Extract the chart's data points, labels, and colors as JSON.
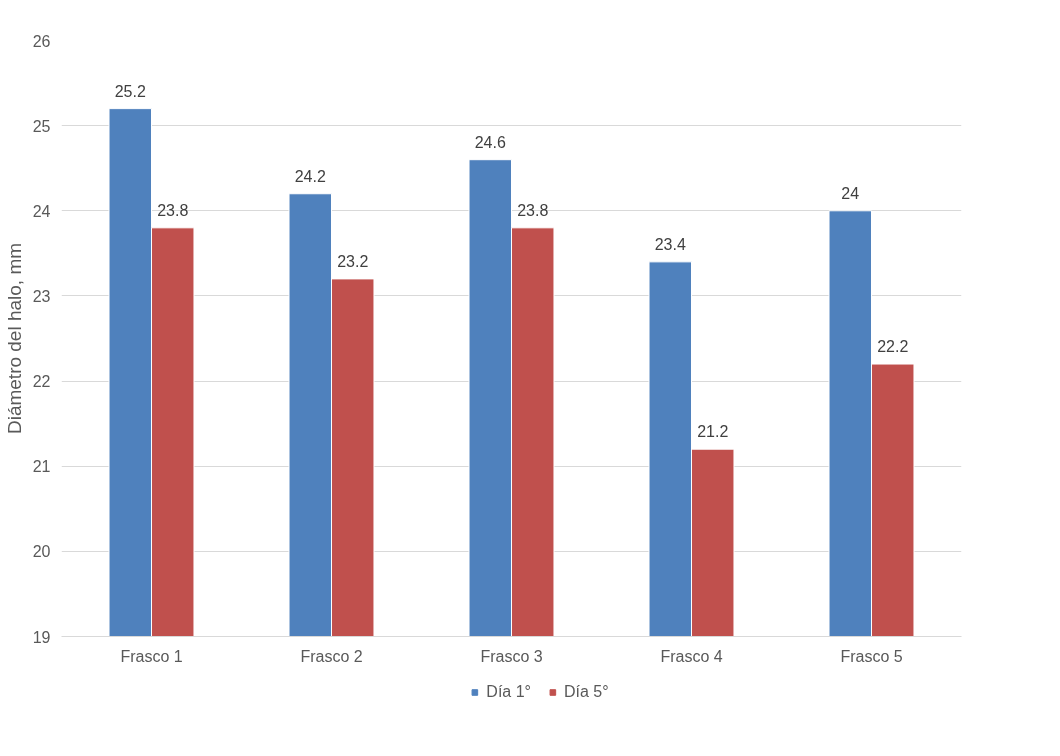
{
  "chart_data": {
    "type": "bar",
    "ylabel": "Diámetro del halo, mm",
    "categories": [
      "Frasco 1",
      "Frasco 2",
      "Frasco 3",
      "Frasco 4",
      "Frasco 5"
    ],
    "series": [
      {
        "name": "Día 1°",
        "color": "#4f81bd",
        "values": [
          25.2,
          24.2,
          24.6,
          23.4,
          24
        ]
      },
      {
        "name": "Día 5°",
        "color": "#c0504d",
        "values": [
          23.8,
          23.2,
          23.8,
          21.2,
          22.2
        ]
      }
    ],
    "ylim": [
      19,
      26
    ],
    "yticks": [
      19,
      20,
      21,
      22,
      23,
      24,
      25,
      26
    ],
    "grid": "y",
    "legend": "bottom",
    "data_labels": true
  }
}
